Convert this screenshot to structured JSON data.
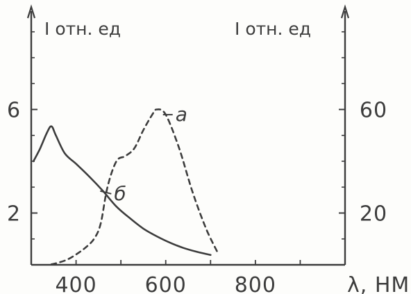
{
  "chart_data": {
    "type": "line",
    "xlabel": "λ, НМ",
    "ylabel_left": "I отн. ед",
    "ylabel_right": "I отн. ед",
    "xlim": [
      300,
      1000
    ],
    "ylim_left": [
      0,
      10
    ],
    "ylim_right": [
      0,
      100
    ],
    "x_ticks": [
      400,
      600,
      800
    ],
    "y_ticks_left": [
      2,
      6
    ],
    "y_ticks_right": [
      20,
      60
    ],
    "grid": false,
    "legend": "none",
    "colors": {
      "ink": "#3c3c3c",
      "paper": "#fdfdfb"
    },
    "series": [
      {
        "label": "а",
        "axis": "right",
        "style": "dashed",
        "x": [
          345,
          360,
          380,
          400,
          420,
          440,
          455,
          470,
          490,
          510,
          530,
          550,
          570,
          580,
          600,
          630,
          660,
          690,
          715
        ],
        "y": [
          0.2,
          0.8,
          2,
          4,
          6.5,
          10,
          16,
          30,
          40,
          42,
          45,
          52,
          58,
          60,
          58,
          45,
          28,
          14,
          5
        ]
      },
      {
        "label": "б",
        "axis": "left",
        "style": "solid",
        "x": [
          305,
          320,
          335,
          345,
          355,
          375,
          400,
          430,
          460,
          490,
          520,
          550,
          580,
          610,
          640,
          670,
          700
        ],
        "y": [
          4.0,
          4.5,
          5.1,
          5.35,
          5.0,
          4.3,
          3.9,
          3.4,
          2.85,
          2.25,
          1.8,
          1.4,
          1.1,
          0.85,
          0.65,
          0.5,
          0.38
        ]
      }
    ]
  }
}
